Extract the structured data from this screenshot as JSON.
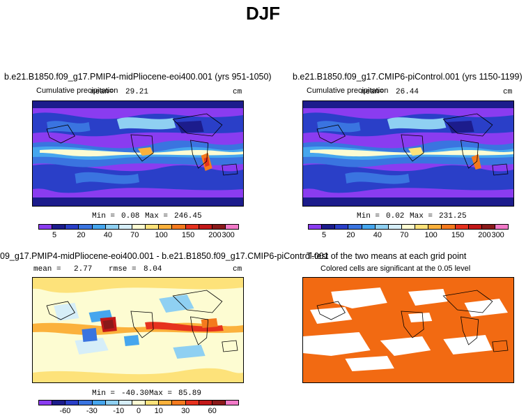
{
  "page_title": "DJF",
  "colors": {
    "precip_scale": [
      "#8a3cf0",
      "#1c1c8c",
      "#2a3fc8",
      "#3a74e0",
      "#46a6ee",
      "#8fd0f2",
      "#d6eef8",
      "#fdfcd2",
      "#fde27a",
      "#fbb13c",
      "#f47a1e",
      "#e6321e",
      "#c21818",
      "#8a1a1a",
      "#f27ac8"
    ],
    "diff_scale": [
      "#8a3cf0",
      "#1c1c8c",
      "#2a3fc8",
      "#3a74e0",
      "#46a6ee",
      "#8fd0f2",
      "#d6eef8",
      "#fdfcd2",
      "#fde27a",
      "#fbb13c",
      "#f47a1e",
      "#e6321e",
      "#c21818",
      "#8a1a1a",
      "#f27ac8"
    ],
    "significance": "#f26a12"
  },
  "panels": {
    "top_left": {
      "title": "b.e21.B1850.f09_g17.PMIP4-midPliocene-eoi400.001 (yrs 951-1050)",
      "variable": "Cumulative precipitation",
      "mean_label": "mean=",
      "mean_value": "29.21",
      "units": "cm",
      "min_label": "Min =",
      "min_value": "0.08",
      "max_label": "Max =",
      "max_value": "246.45"
    },
    "top_right": {
      "title": "b.e21.B1850.f09_g17.CMIP6-piControl.001 (yrs 1150-1199)",
      "variable": "Cumulative precipitation",
      "mean_label": "mean=",
      "mean_value": "26.44",
      "units": "cm",
      "min_label": "Min =",
      "min_value": "0.02",
      "max_label": "Max =",
      "max_value": "231.25"
    },
    "bottom_left": {
      "title": "09_g17.PMIP4-midPliocene-eoi400.001 - b.e21.B1850.f09_g17.CMIP6-piControl.001",
      "mean_label": "mean =",
      "mean_value": "2.77",
      "rmse_label": "rmse =",
      "rmse_value": "8.04",
      "units": "cm",
      "min_label": "Min =",
      "min_value": "-40.30",
      "max_label": "Max =",
      "max_value": "85.89"
    },
    "bottom_right": {
      "title": "T-test of the two means at each grid point",
      "subtitle": "Colored cells are significant at the 0.05 level"
    }
  },
  "chart_data": [
    {
      "type": "heatmap",
      "title": "b.e21.B1850.f09_g17.PMIP4-midPliocene-eoi400.001 (yrs 951-1050)",
      "variable": "Cumulative precipitation",
      "units": "cm",
      "mean": 29.21,
      "min": 0.08,
      "max": 246.45,
      "colorbar_ticks": [
        "5",
        "20",
        "40",
        "70",
        "100",
        "150",
        "200",
        "300"
      ]
    },
    {
      "type": "heatmap",
      "title": "b.e21.B1850.f09_g17.CMIP6-piControl.001 (yrs 1150-1199)",
      "variable": "Cumulative precipitation",
      "units": "cm",
      "mean": 26.44,
      "min": 0.02,
      "max": 231.25,
      "colorbar_ticks": [
        "5",
        "20",
        "40",
        "70",
        "100",
        "150",
        "200",
        "300"
      ]
    },
    {
      "type": "heatmap",
      "title": "09_g17.PMIP4-midPliocene-eoi400.001 - b.e21.B1850.f09_g17.CMIP6-piControl.001",
      "units": "cm",
      "mean": 2.77,
      "rmse": 8.04,
      "min": -40.3,
      "max": 85.89,
      "colorbar_ticks": [
        "-60",
        "-30",
        "-10",
        "0",
        "10",
        "30",
        "60"
      ]
    },
    {
      "type": "heatmap",
      "title": "T-test of the two means at each grid point",
      "subtitle": "Colored cells are significant at the 0.05 level",
      "significance_level": 0.05
    }
  ]
}
